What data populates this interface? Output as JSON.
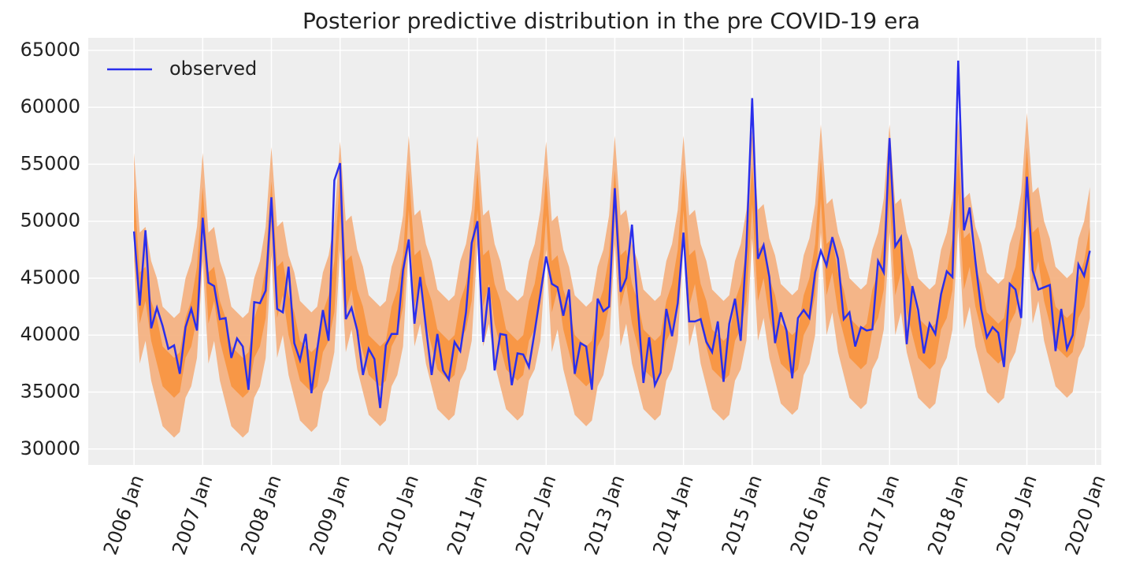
{
  "chart_data": {
    "type": "line",
    "title": "Posterior predictive distribution in the pre COVID-19 era",
    "x": [
      "2006-01",
      "2006-02",
      "2006-03",
      "2006-04",
      "2006-05",
      "2006-06",
      "2006-07",
      "2006-08",
      "2006-09",
      "2006-10",
      "2006-11",
      "2006-12",
      "2007-01",
      "2007-02",
      "2007-03",
      "2007-04",
      "2007-05",
      "2007-06",
      "2007-07",
      "2007-08",
      "2007-09",
      "2007-10",
      "2007-11",
      "2007-12",
      "2008-01",
      "2008-02",
      "2008-03",
      "2008-04",
      "2008-05",
      "2008-06",
      "2008-07",
      "2008-08",
      "2008-09",
      "2008-10",
      "2008-11",
      "2008-12",
      "2009-01",
      "2009-02",
      "2009-03",
      "2009-04",
      "2009-05",
      "2009-06",
      "2009-07",
      "2009-08",
      "2009-09",
      "2009-10",
      "2009-11",
      "2009-12",
      "2010-01",
      "2010-02",
      "2010-03",
      "2010-04",
      "2010-05",
      "2010-06",
      "2010-07",
      "2010-08",
      "2010-09",
      "2010-10",
      "2010-11",
      "2010-12",
      "2011-01",
      "2011-02",
      "2011-03",
      "2011-04",
      "2011-05",
      "2011-06",
      "2011-07",
      "2011-08",
      "2011-09",
      "2011-10",
      "2011-11",
      "2011-12",
      "2012-01",
      "2012-02",
      "2012-03",
      "2012-04",
      "2012-05",
      "2012-06",
      "2012-07",
      "2012-08",
      "2012-09",
      "2012-10",
      "2012-11",
      "2012-12",
      "2013-01",
      "2013-02",
      "2013-03",
      "2013-04",
      "2013-05",
      "2013-06",
      "2013-07",
      "2013-08",
      "2013-09",
      "2013-10",
      "2013-11",
      "2013-12",
      "2014-01",
      "2014-02",
      "2014-03",
      "2014-04",
      "2014-05",
      "2014-06",
      "2014-07",
      "2014-08",
      "2014-09",
      "2014-10",
      "2014-11",
      "2014-12",
      "2015-01",
      "2015-02",
      "2015-03",
      "2015-04",
      "2015-05",
      "2015-06",
      "2015-07",
      "2015-08",
      "2015-09",
      "2015-10",
      "2015-11",
      "2015-12",
      "2016-01",
      "2016-02",
      "2016-03",
      "2016-04",
      "2016-05",
      "2016-06",
      "2016-07",
      "2016-08",
      "2016-09",
      "2016-10",
      "2016-11",
      "2016-12",
      "2017-01",
      "2017-02",
      "2017-03",
      "2017-04",
      "2017-05",
      "2017-06",
      "2017-07",
      "2017-08",
      "2017-09",
      "2017-10",
      "2017-11",
      "2017-12",
      "2018-01",
      "2018-02",
      "2018-03",
      "2018-04",
      "2018-05",
      "2018-06",
      "2018-07",
      "2018-08",
      "2018-09",
      "2018-10",
      "2018-11",
      "2018-12",
      "2019-01",
      "2019-02",
      "2019-03",
      "2019-04",
      "2019-05",
      "2019-06",
      "2019-07",
      "2019-08",
      "2019-09",
      "2019-10",
      "2019-11",
      "2019-12"
    ],
    "bands": [
      {
        "color": "#f4ae7c",
        "upper": [
          56000,
          49000,
          49500,
          46500,
          45000,
          42500,
          42000,
          41500,
          42000,
          45000,
          46500,
          49500,
          56000,
          49000,
          49500,
          46500,
          45000,
          42500,
          42000,
          41500,
          42000,
          45000,
          46500,
          49500,
          56500,
          49500,
          50000,
          47000,
          45500,
          43000,
          42500,
          42000,
          42500,
          45500,
          47000,
          50000,
          57000,
          50000,
          50500,
          47500,
          46000,
          43500,
          43000,
          42500,
          43000,
          46000,
          47500,
          50500,
          57500,
          50500,
          51000,
          48000,
          46500,
          44000,
          43500,
          43000,
          43500,
          46500,
          48000,
          51000,
          57500,
          50500,
          51000,
          48000,
          46500,
          44000,
          43500,
          43000,
          43500,
          46500,
          48000,
          51000,
          57000,
          50000,
          50500,
          47500,
          46000,
          43500,
          43000,
          42500,
          43000,
          46000,
          47500,
          50500,
          57500,
          50500,
          51000,
          48000,
          46500,
          44000,
          43500,
          43000,
          43500,
          46500,
          48000,
          51000,
          57500,
          50500,
          51000,
          48000,
          46500,
          44000,
          43500,
          43000,
          43500,
          46500,
          48000,
          51000,
          58000,
          51000,
          51500,
          48500,
          47000,
          44500,
          44000,
          43500,
          44000,
          47000,
          48500,
          51500,
          58500,
          51500,
          52000,
          49000,
          47500,
          45000,
          44500,
          44000,
          44500,
          47500,
          49000,
          52000,
          58500,
          51500,
          52000,
          49000,
          47500,
          45000,
          44500,
          44000,
          44500,
          47500,
          49000,
          52000,
          59000,
          52000,
          52500,
          49500,
          48000,
          45500,
          45000,
          44500,
          45000,
          48000,
          49500,
          52500,
          59500,
          52500,
          53000,
          50000,
          48500,
          46000,
          45500,
          45000,
          45500,
          48500,
          50000,
          53000
        ],
        "lower": [
          46500,
          37500,
          39500,
          36000,
          34000,
          32000,
          31500,
          31000,
          31500,
          34500,
          35500,
          38000,
          46500,
          37500,
          39500,
          36000,
          34000,
          32000,
          31500,
          31000,
          31500,
          34500,
          35500,
          38000,
          47000,
          38000,
          40000,
          36500,
          34500,
          32500,
          32000,
          31500,
          32000,
          35000,
          36000,
          38500,
          47500,
          38500,
          40500,
          37000,
          35000,
          33000,
          32500,
          32000,
          32500,
          35500,
          36500,
          39000,
          48000,
          39000,
          41000,
          37500,
          35500,
          33500,
          33000,
          32500,
          33000,
          36000,
          37000,
          39500,
          48000,
          39000,
          41000,
          37500,
          35500,
          33500,
          33000,
          32500,
          33000,
          36000,
          37000,
          39500,
          47500,
          38500,
          40500,
          37000,
          35000,
          33000,
          32500,
          32000,
          32500,
          35500,
          36500,
          39000,
          48000,
          39000,
          41000,
          37500,
          35500,
          33500,
          33000,
          32500,
          33000,
          36000,
          37000,
          39500,
          48000,
          39000,
          41000,
          37500,
          35500,
          33500,
          33000,
          32500,
          33000,
          36000,
          37000,
          39500,
          48500,
          39500,
          41500,
          38000,
          36000,
          34000,
          33500,
          33000,
          33500,
          36500,
          37500,
          40000,
          49000,
          40000,
          42000,
          38500,
          36500,
          34500,
          34000,
          33500,
          34000,
          37000,
          38000,
          40500,
          49000,
          40000,
          42000,
          38500,
          36500,
          34500,
          34000,
          33500,
          34000,
          37000,
          38000,
          40500,
          49500,
          40500,
          42500,
          39000,
          37000,
          35000,
          34500,
          34000,
          34500,
          37500,
          38500,
          41000,
          50000,
          41000,
          43000,
          39500,
          37500,
          35500,
          35000,
          34500,
          35000,
          38000,
          39000,
          41500
        ]
      },
      {
        "color": "#f8933f",
        "upper": [
          53000,
          45500,
          46000,
          43000,
          41500,
          39000,
          38500,
          38000,
          38500,
          41500,
          43000,
          46000,
          53000,
          45500,
          46000,
          43000,
          41500,
          39000,
          38500,
          38000,
          38500,
          41500,
          43000,
          46000,
          53500,
          46000,
          46500,
          43500,
          42000,
          39500,
          39000,
          38500,
          39000,
          42000,
          43500,
          46500,
          54000,
          46500,
          47000,
          44000,
          42500,
          40000,
          39500,
          39000,
          39500,
          42500,
          44000,
          47000,
          54500,
          47000,
          47500,
          44500,
          43000,
          40500,
          40000,
          39500,
          40000,
          43000,
          44500,
          47500,
          54500,
          47000,
          47500,
          44500,
          43000,
          40500,
          40000,
          39500,
          40000,
          43000,
          44500,
          47500,
          54000,
          46500,
          47000,
          44000,
          42500,
          40000,
          39500,
          39000,
          39500,
          42500,
          44000,
          47000,
          54500,
          47000,
          47500,
          44500,
          43000,
          40500,
          40000,
          39500,
          40000,
          43000,
          44500,
          47500,
          54500,
          47000,
          47500,
          44500,
          43000,
          40500,
          40000,
          39500,
          40000,
          43000,
          44500,
          47500,
          55000,
          47500,
          48000,
          45000,
          43500,
          41000,
          40500,
          40000,
          40500,
          43500,
          45000,
          48000,
          55500,
          48000,
          48500,
          45500,
          44000,
          41500,
          41000,
          40500,
          41000,
          44000,
          45500,
          48500,
          55500,
          48000,
          48500,
          45500,
          44000,
          41500,
          41000,
          40500,
          41000,
          44000,
          45500,
          48500,
          56000,
          48500,
          49000,
          46000,
          44500,
          42000,
          41500,
          41000,
          41500,
          44500,
          46000,
          49000,
          56500,
          49000,
          49500,
          46500,
          45000,
          42500,
          42000,
          41500,
          42000,
          45000,
          46500,
          49500
        ],
        "lower": [
          49500,
          41000,
          43000,
          39500,
          37500,
          35500,
          35000,
          34500,
          35000,
          38000,
          39000,
          41500,
          49500,
          41000,
          43000,
          39500,
          37500,
          35500,
          35000,
          34500,
          35000,
          38000,
          39000,
          41500,
          50000,
          41500,
          43500,
          40000,
          38000,
          36000,
          35500,
          35000,
          35500,
          38500,
          39500,
          42000,
          50500,
          42000,
          44000,
          40500,
          38500,
          36500,
          36000,
          35500,
          36000,
          39000,
          40000,
          42500,
          51000,
          42500,
          44500,
          41000,
          39000,
          37000,
          36500,
          36000,
          36500,
          39500,
          40500,
          43000,
          51000,
          42500,
          44500,
          41000,
          39000,
          37000,
          36500,
          36000,
          36500,
          39500,
          40500,
          43000,
          50500,
          42000,
          44000,
          40500,
          38500,
          36500,
          36000,
          35500,
          36000,
          39000,
          40000,
          42500,
          51000,
          42500,
          44500,
          41000,
          39000,
          37000,
          36500,
          36000,
          36500,
          39500,
          40500,
          43000,
          51000,
          42500,
          44500,
          41000,
          39000,
          37000,
          36500,
          36000,
          36500,
          39500,
          40500,
          43000,
          51500,
          43000,
          45000,
          41500,
          39500,
          37500,
          37000,
          36500,
          37000,
          40000,
          41000,
          43500,
          52000,
          43500,
          45500,
          42000,
          40000,
          38000,
          37500,
          37000,
          37500,
          40500,
          41500,
          44000,
          52000,
          43500,
          45500,
          42000,
          40000,
          38000,
          37500,
          37000,
          37500,
          40500,
          41500,
          44000,
          52500,
          44000,
          46000,
          42500,
          40500,
          38500,
          38000,
          37500,
          38000,
          41000,
          42000,
          44500,
          53000,
          44500,
          46500,
          43000,
          41000,
          39000,
          38500,
          38000,
          38500,
          41500,
          42500,
          45000
        ]
      }
    ],
    "series": [
      {
        "name": "observed",
        "color": "#2a2eec",
        "values": [
          49100,
          42600,
          49200,
          40600,
          42400,
          40800,
          38800,
          39100,
          36600,
          40700,
          42300,
          40400,
          50300,
          44600,
          44300,
          41400,
          41500,
          38000,
          39700,
          39000,
          35200,
          42900,
          42800,
          43900,
          52100,
          42300,
          42000,
          46000,
          39300,
          37800,
          40100,
          34900,
          38700,
          42200,
          39500,
          53600,
          55100,
          41400,
          42400,
          40400,
          36500,
          38800,
          37900,
          33600,
          39100,
          40100,
          40100,
          45700,
          48400,
          41000,
          45100,
          40700,
          36500,
          40100,
          36900,
          36100,
          39400,
          38600,
          42000,
          48100,
          50000,
          39400,
          44200,
          36900,
          40100,
          40000,
          35600,
          38400,
          38300,
          37200,
          40300,
          43600,
          46900,
          44500,
          44200,
          41700,
          44000,
          36600,
          39300,
          39000,
          35200,
          43200,
          42100,
          42500,
          52900,
          43800,
          45000,
          49700,
          42700,
          35800,
          39800,
          35600,
          36700,
          42300,
          39900,
          42800,
          49000,
          41200,
          41200,
          41400,
          39400,
          38500,
          41200,
          35900,
          41000,
          43200,
          39500,
          47800,
          60800,
          46700,
          47900,
          45100,
          39300,
          42000,
          40400,
          36200,
          41500,
          42200,
          41500,
          45500,
          47400,
          46100,
          48600,
          46700,
          41400,
          42000,
          39000,
          40700,
          40400,
          40500,
          46500,
          45500,
          57300,
          47800,
          48600,
          39200,
          44300,
          42200,
          38400,
          41000,
          40100,
          43600,
          45600,
          45100,
          64100,
          49200,
          51200,
          46500,
          42300,
          39800,
          40700,
          40200,
          37200,
          44500,
          44000,
          41500,
          53900,
          45700,
          44000,
          44200,
          44400,
          38600,
          42300,
          38800,
          40000,
          46200,
          45200,
          47400
        ]
      }
    ],
    "xlim": [
      "2005-05",
      "2020-02"
    ],
    "xticks": [
      {
        "value": "2006-01",
        "label": "2006 Jan"
      },
      {
        "value": "2007-01",
        "label": "2007 Jan"
      },
      {
        "value": "2008-01",
        "label": "2008 Jan"
      },
      {
        "value": "2009-01",
        "label": "2009 Jan"
      },
      {
        "value": "2010-01",
        "label": "2010 Jan"
      },
      {
        "value": "2011-01",
        "label": "2011 Jan"
      },
      {
        "value": "2012-01",
        "label": "2012 Jan"
      },
      {
        "value": "2013-01",
        "label": "2013 Jan"
      },
      {
        "value": "2014-01",
        "label": "2014 Jan"
      },
      {
        "value": "2015-01",
        "label": "2015 Jan"
      },
      {
        "value": "2016-01",
        "label": "2016 Jan"
      },
      {
        "value": "2017-01",
        "label": "2017 Jan"
      },
      {
        "value": "2018-01",
        "label": "2018 Jan"
      },
      {
        "value": "2019-01",
        "label": "2019 Jan"
      },
      {
        "value": "2020-01",
        "label": "2020 Jan"
      }
    ],
    "ylim": [
      28600,
      66100
    ],
    "yticks": [
      30000,
      35000,
      40000,
      45000,
      50000,
      55000,
      60000,
      65000
    ],
    "grid": true,
    "legend": "upper-left"
  }
}
